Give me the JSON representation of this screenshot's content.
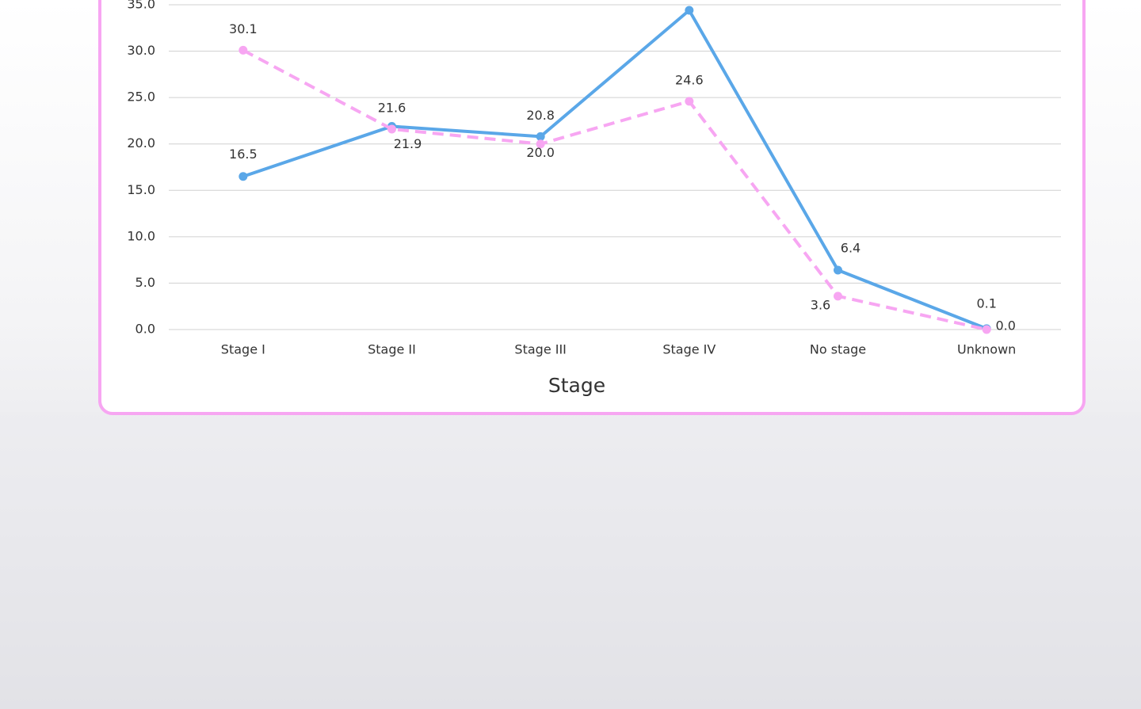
{
  "chart_data": {
    "type": "line",
    "x_label": "Stage",
    "categories": [
      "Stage I",
      "Stage II",
      "Stage III",
      "Stage IV",
      "No stage",
      "Unknown"
    ],
    "series": [
      {
        "color": "#5aa7e8",
        "dashed": false,
        "values": [
          16.5,
          21.9,
          20.8,
          34.4,
          6.4,
          0.1
        ],
        "value_labels": [
          "16.5",
          "21.9",
          "20.8",
          null,
          "6.4",
          "0.1"
        ]
      },
      {
        "color": "#f7a6f2",
        "dashed": true,
        "values": [
          30.1,
          21.6,
          20.0,
          24.6,
          3.6,
          0.0
        ],
        "value_labels": [
          "30.1",
          "21.6",
          "20.0",
          "24.6",
          "3.6",
          "0.0"
        ]
      }
    ],
    "ylim": [
      0,
      35
    ],
    "yticks": [
      {
        "value": 0,
        "label": "0.0"
      },
      {
        "value": 5,
        "label": "5.0"
      },
      {
        "value": 10,
        "label": "10.0"
      },
      {
        "value": 15,
        "label": "15.0"
      },
      {
        "value": 20,
        "label": "20.0"
      },
      {
        "value": 25,
        "label": "25.0"
      },
      {
        "value": 30,
        "label": "30.0"
      },
      {
        "value": 35,
        "label": "35.0"
      }
    ],
    "grid": true
  }
}
